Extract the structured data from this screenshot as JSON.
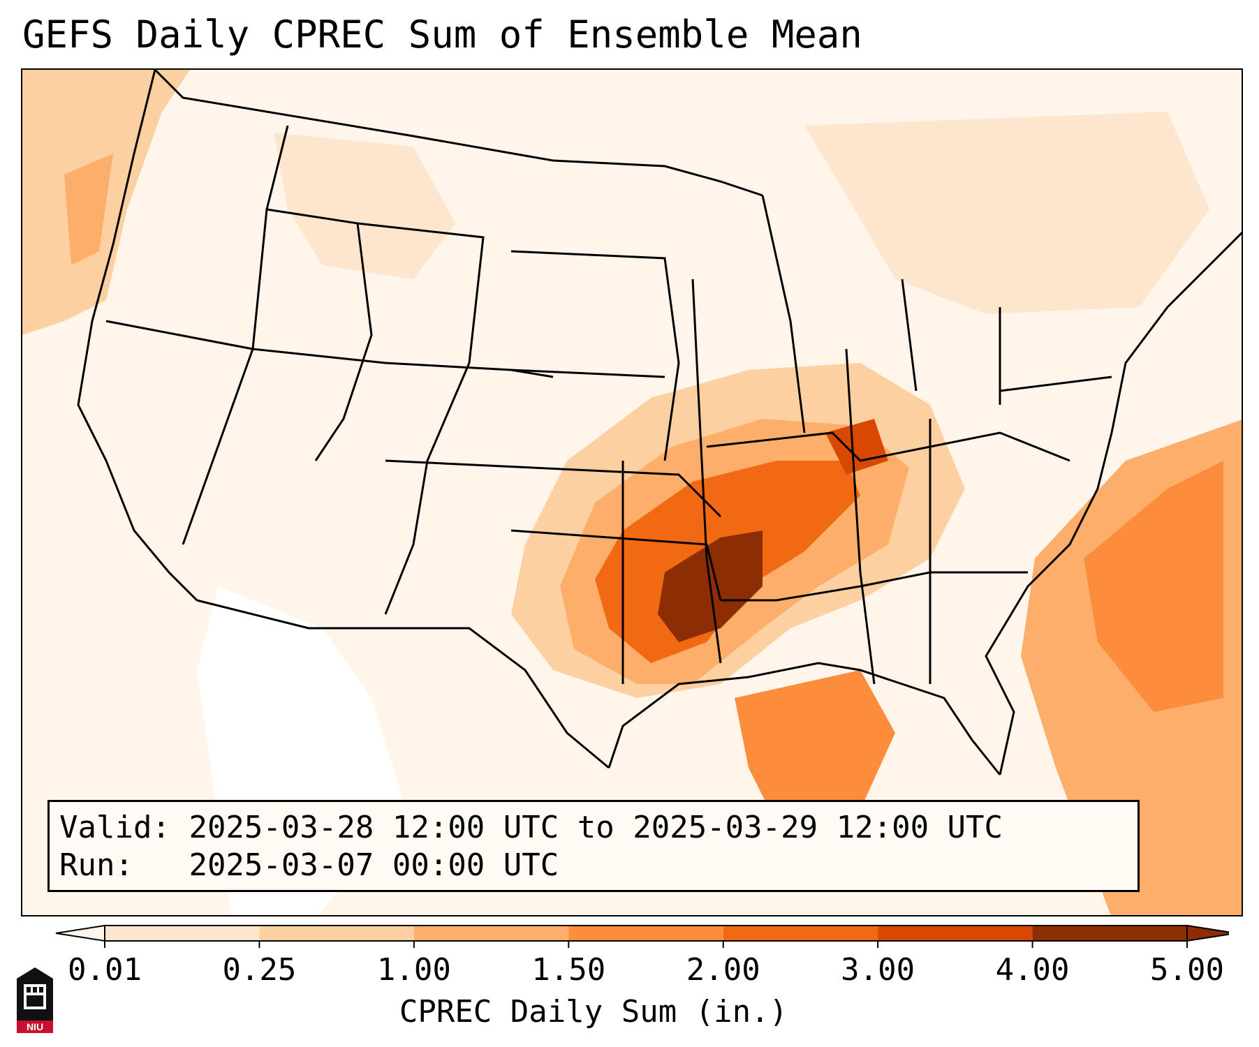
{
  "title": "GEFS Daily CPREC Sum of Ensemble Mean",
  "info": {
    "valid_label": "Valid:",
    "valid_value": "2025-03-28 12:00 UTC to 2025-03-29 12:00 UTC",
    "run_label": "Run:",
    "run_value": "2025-03-07 00:00 UTC"
  },
  "colorbar": {
    "label": "CPREC Daily Sum (in.)",
    "ticks": [
      "0.01",
      "0.25",
      "1.00",
      "1.50",
      "2.00",
      "3.00",
      "4.00",
      "5.00"
    ],
    "colors": [
      "#fff5eb",
      "#fee6ce",
      "#fdd0a2",
      "#fdae6b",
      "#fd8d3c",
      "#f16913",
      "#d94801",
      "#8c2d04"
    ],
    "extend": "both"
  },
  "logo": {
    "text": "NIU",
    "icon": "niu-castle-logo-icon"
  },
  "map": {
    "region": "Continental United States",
    "projection": "Lambert Conformal",
    "background_color": "#fff5eb",
    "max_color": "#8c2d04"
  }
}
